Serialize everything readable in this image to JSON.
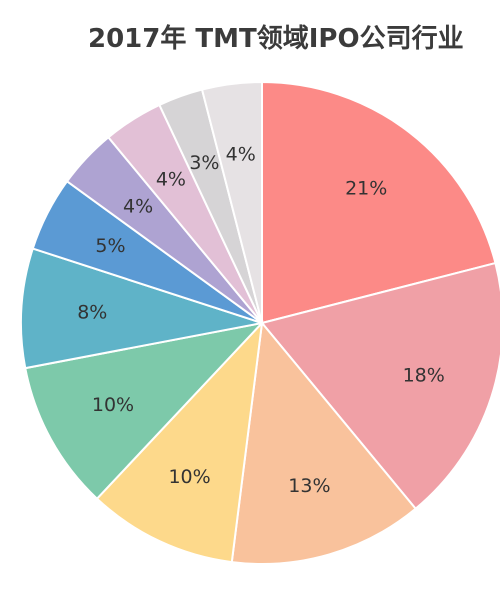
{
  "chart_data": {
    "type": "pie",
    "title": "2017年 TMT领域IPO公司行业",
    "values": [
      21,
      18,
      13,
      10,
      10,
      8,
      5,
      4,
      4,
      3,
      4
    ],
    "labels": [
      "21%",
      "18%",
      "13%",
      "10%",
      "10%",
      "8%",
      "5%",
      "4%",
      "4%",
      "3%",
      "4%"
    ],
    "colors": [
      "#fc8a87",
      "#f0a0a6",
      "#f9c29c",
      "#fdd98b",
      "#7dc9aa",
      "#5fb3c8",
      "#5b9ad4",
      "#aea3d2",
      "#e2c0d6",
      "#d6d4d6",
      "#e6e2e4"
    ],
    "start_angle": "12 o'clock",
    "direction": "clockwise",
    "legend": "none"
  }
}
